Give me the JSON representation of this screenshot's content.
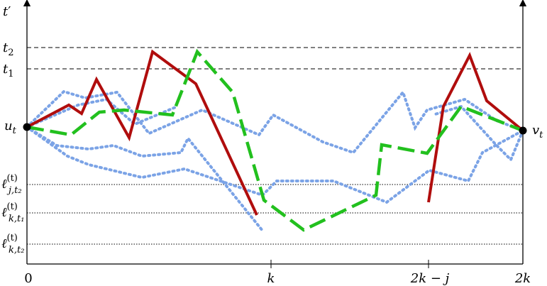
{
  "y_axis": {
    "base": "t",
    "mark": "′"
  },
  "levels": [
    {
      "base": "t",
      "sub": "2"
    },
    {
      "base": "t",
      "sub": "1"
    }
  ],
  "start": {
    "base": "u",
    "sub": "t"
  },
  "end": {
    "base": "v",
    "sub": "t"
  },
  "thresholds": [
    {
      "base": "ℓ",
      "sup": "(t)",
      "sub": "j,t₂"
    },
    {
      "base": "ℓ",
      "sup": "(t)",
      "sub": "k,t₁"
    },
    {
      "base": "ℓ",
      "sup": "(t)",
      "sub": "k,t₂"
    }
  ],
  "x_labels": [
    "0",
    "k",
    "2k − j",
    "2k"
  ]
}
